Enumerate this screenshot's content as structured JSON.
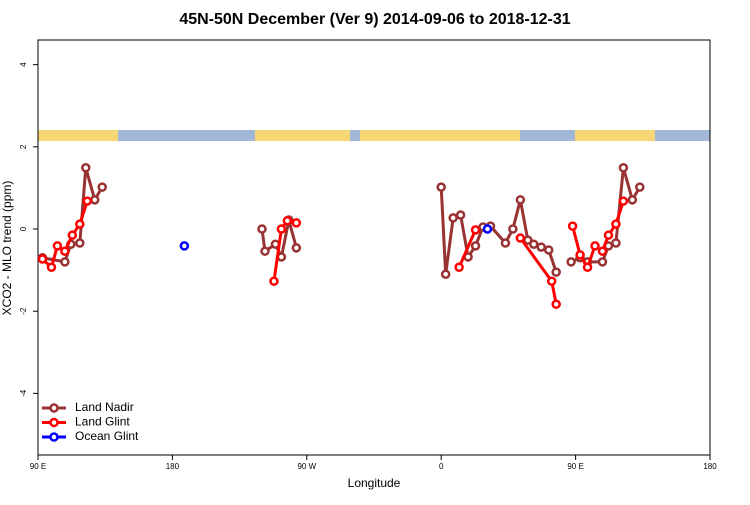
{
  "chart_data": {
    "type": "line",
    "title": "45N-50N December (Ver 9)   2014-09-06 to 2018-12-31",
    "x_label": "Longitude",
    "y_label": "XCO2 - MLO trend (ppm)",
    "xlim": [
      90,
      540
    ],
    "ylim": [
      -5.5,
      4.6
    ],
    "xticks": [
      {
        "value": 90,
        "label": "90 E"
      },
      180,
      {
        "value": 270,
        "label": "90 W"
      },
      {
        "value": 360,
        "label": "0"
      },
      {
        "value": 450,
        "label": "90 E"
      },
      {
        "value": 540,
        "label": "180"
      }
    ],
    "yticks": [
      -4,
      -2,
      0,
      2,
      4
    ],
    "legend": "bottom-left",
    "series": [
      {
        "name": "Land Nadir",
        "color": "#993333",
        "x": [
          93,
          108,
          112,
          118,
          122,
          128,
          133,
          null,
          240,
          242,
          249,
          253,
          258,
          263,
          null,
          360,
          363,
          368,
          373,
          378,
          383,
          388,
          393,
          403,
          408,
          413,
          418,
          422,
          427,
          432,
          437,
          null,
          447,
          453,
          458,
          468,
          472,
          477,
          482,
          488,
          493
        ],
        "values": [
          -0.7,
          -0.8,
          -0.37,
          -0.34,
          1.49,
          0.71,
          1.02,
          null,
          0.0,
          -0.54,
          -0.37,
          -0.68,
          0.22,
          -0.46,
          null,
          1.02,
          -1.1,
          0.27,
          0.34,
          -0.68,
          -0.41,
          0.05,
          0.07,
          -0.34,
          0.0,
          0.71,
          -0.27,
          -0.37,
          -0.44,
          -0.51,
          -1.05,
          null,
          -0.8,
          -0.7,
          -0.8,
          -0.8,
          -0.41,
          -0.34,
          1.49,
          0.71,
          1.02
        ]
      },
      {
        "name": "Land Glint",
        "color": "#ff0000",
        "x": [
          93,
          99,
          103,
          108,
          113,
          118,
          123,
          null,
          248,
          253,
          257,
          263,
          null,
          372,
          383,
          null,
          413,
          434,
          437,
          null,
          448,
          453,
          458,
          463,
          468,
          472,
          477,
          482
        ],
        "values": [
          -0.73,
          -0.93,
          -0.41,
          -0.54,
          -0.15,
          0.12,
          0.68,
          null,
          -1.27,
          0.0,
          0.2,
          0.15,
          null,
          -0.93,
          -0.02,
          null,
          -0.22,
          -1.27,
          -1.83,
          null,
          0.07,
          -0.63,
          -0.93,
          -0.41,
          -0.54,
          -0.15,
          0.12,
          0.68
        ]
      },
      {
        "name": "Ocean Glint",
        "color": "#0000ff",
        "x": [
          188,
          null,
          391
        ],
        "values": [
          -0.41,
          null,
          0.0
        ]
      }
    ]
  }
}
